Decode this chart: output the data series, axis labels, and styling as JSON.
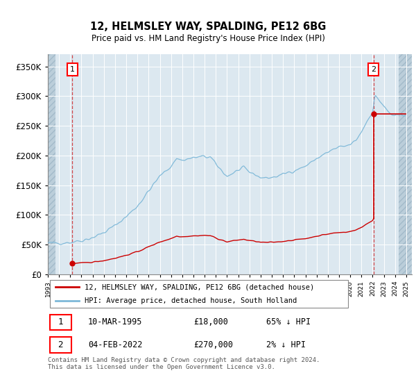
{
  "title": "12, HELMSLEY WAY, SPALDING, PE12 6BG",
  "subtitle": "Price paid vs. HM Land Registry's House Price Index (HPI)",
  "legend_line1": "12, HELMSLEY WAY, SPALDING, PE12 6BG (detached house)",
  "legend_line2": "HPI: Average price, detached house, South Holland",
  "footnote": "Contains HM Land Registry data © Crown copyright and database right 2024.\nThis data is licensed under the Open Government Licence v3.0.",
  "annotation1": {
    "label": "1",
    "date": "10-MAR-1995",
    "price": "£18,000",
    "hpi": "65% ↓ HPI"
  },
  "annotation2": {
    "label": "2",
    "date": "04-FEB-2022",
    "price": "£270,000",
    "hpi": "2% ↓ HPI"
  },
  "sale1_x": 1995.19,
  "sale1_y": 18000,
  "sale2_x": 2022.09,
  "sale2_y": 270000,
  "hpi_color": "#7db8d8",
  "sale_color": "#cc0000",
  "plot_bg_color": "#dce8f0",
  "hatch_color": "#b8ccd8",
  "ylim": [
    0,
    370000
  ],
  "xlim": [
    1993.0,
    2025.5
  ],
  "yticks": [
    0,
    50000,
    100000,
    150000,
    200000,
    250000,
    300000,
    350000
  ],
  "xticks": [
    1993,
    1994,
    1995,
    1996,
    1997,
    1998,
    1999,
    2000,
    2001,
    2002,
    2003,
    2004,
    2005,
    2006,
    2007,
    2008,
    2009,
    2010,
    2011,
    2012,
    2013,
    2014,
    2015,
    2016,
    2017,
    2018,
    2019,
    2020,
    2021,
    2022,
    2023,
    2024,
    2025
  ]
}
